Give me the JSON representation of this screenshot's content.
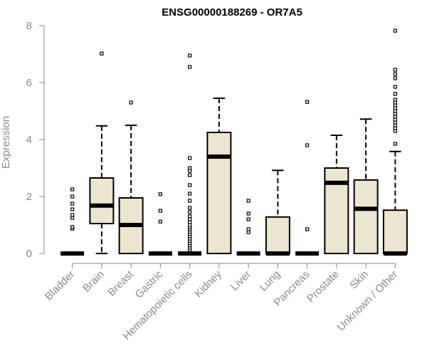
{
  "chart_data": {
    "type": "boxplot",
    "title": "ENSG00000188269 - OR7A5",
    "xlabel": "",
    "ylabel": "Expression",
    "ylim": [
      0,
      8
    ],
    "yticks": [
      0,
      2,
      4,
      6,
      8
    ],
    "box_fill": "#ede6cf",
    "box_stroke": "#000000",
    "axis_color": "#8a8a8a",
    "categories": [
      "Bladder",
      "Brain",
      "Breast",
      "Gastric",
      "Hematopoietic cells",
      "Kidney",
      "Liver",
      "Lung",
      "Pancreas",
      "Prostate",
      "Skin",
      "Unknown / Other"
    ],
    "boxes": [
      {
        "category": "Bladder",
        "whisker_low": 0,
        "q1": 0,
        "median": 0,
        "q3": 0,
        "whisker_high": 0,
        "outliers": [
          0.87,
          0.93,
          1.25,
          1.35,
          1.55,
          1.75,
          2.0,
          2.25
        ]
      },
      {
        "category": "Brain",
        "whisker_low": 0,
        "q1": 1.05,
        "median": 1.68,
        "q3": 2.65,
        "whisker_high": 4.48,
        "outliers": [
          7.02
        ]
      },
      {
        "category": "Breast",
        "whisker_low": 0,
        "q1": 0,
        "median": 1.0,
        "q3": 1.95,
        "whisker_high": 4.5,
        "outliers": [
          5.3
        ]
      },
      {
        "category": "Gastric",
        "whisker_low": 0,
        "q1": 0,
        "median": 0,
        "q3": 0,
        "whisker_high": 0,
        "outliers": [
          1.12,
          1.5,
          2.08
        ]
      },
      {
        "category": "Hematopoietic cells",
        "whisker_low": 0,
        "q1": 0,
        "median": 0,
        "q3": 0,
        "whisker_high": 0,
        "outliers": [
          0.12,
          0.2,
          0.28,
          0.36,
          0.44,
          0.52,
          0.6,
          0.68,
          0.76,
          0.84,
          0.92,
          1.0,
          1.1,
          1.2,
          1.3,
          1.45,
          1.6,
          1.85,
          2.1,
          2.4,
          2.75,
          2.9,
          3.0,
          3.35,
          6.55,
          6.95
        ]
      },
      {
        "category": "Kidney",
        "whisker_low": 0,
        "q1": 0,
        "median": 3.4,
        "q3": 4.25,
        "whisker_high": 5.45,
        "outliers": []
      },
      {
        "category": "Liver",
        "whisker_low": 0,
        "q1": 0,
        "median": 0,
        "q3": 0,
        "whisker_high": 0,
        "outliers": [
          0.75,
          0.85,
          1.2,
          1.4,
          1.85
        ]
      },
      {
        "category": "Lung",
        "whisker_low": 0,
        "q1": 0,
        "median": 0,
        "q3": 1.28,
        "whisker_high": 2.92,
        "outliers": []
      },
      {
        "category": "Pancreas",
        "whisker_low": 0,
        "q1": 0,
        "median": 0,
        "q3": 0,
        "whisker_high": 0,
        "outliers": [
          0.85,
          3.8,
          5.32
        ]
      },
      {
        "category": "Prostate",
        "whisker_low": 0,
        "q1": 0,
        "median": 2.48,
        "q3": 3.0,
        "whisker_high": 4.15,
        "outliers": []
      },
      {
        "category": "Skin",
        "whisker_low": 0,
        "q1": 0,
        "median": 1.57,
        "q3": 2.58,
        "whisker_high": 4.72,
        "outliers": []
      },
      {
        "category": "Unknown / Other",
        "whisker_low": 0,
        "q1": 0,
        "median": 0,
        "q3": 1.52,
        "whisker_high": 3.58,
        "outliers": [
          3.85,
          4.3,
          4.4,
          4.5,
          4.6,
          4.7,
          4.8,
          4.9,
          5.0,
          5.1,
          5.2,
          5.3,
          5.4,
          5.6,
          5.85,
          6.15,
          6.3,
          6.45,
          7.82
        ]
      }
    ]
  }
}
